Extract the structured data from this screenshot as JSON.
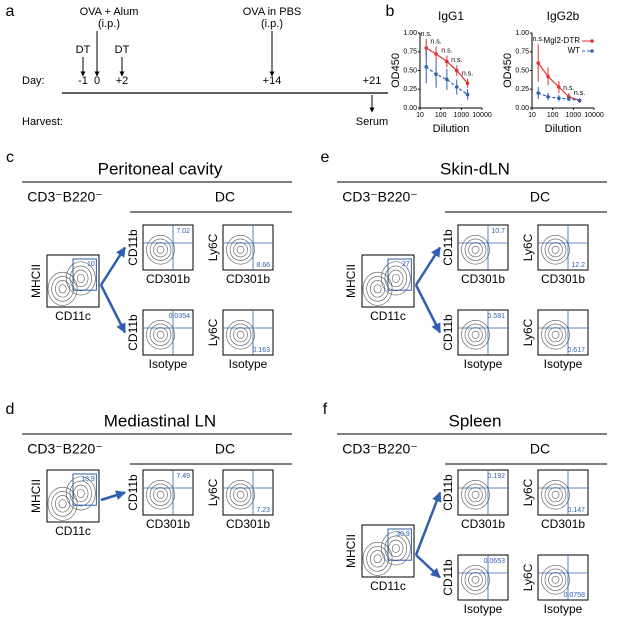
{
  "panel_labels": [
    "a",
    "b"
  ],
  "timeline": {
    "day_label": "Day:",
    "harvest_label": "Harvest:",
    "days": [
      "-1",
      "0",
      "+2",
      "+14",
      "+21"
    ],
    "events": [
      {
        "label": "DT"
      },
      {
        "label": "OVA + Alum",
        "sublabel": "(i.p.)"
      },
      {
        "label": "DT"
      },
      {
        "label": "OVA in PBS",
        "sublabel": "(i.p.)"
      }
    ],
    "harvest": "Serum"
  },
  "elisa": [
    {
      "type": "line",
      "title": "IgG1",
      "ylabel": "OD450",
      "xlabel": "Dilution",
      "log_x": true,
      "x": [
        20,
        60,
        200,
        600,
        2000
      ],
      "xlim": [
        10,
        10000
      ],
      "xticks": [
        10,
        100,
        1000,
        10000
      ],
      "ylim": [
        0,
        1
      ],
      "yticks": [
        {
          "value": 0,
          "label": "0.00"
        },
        {
          "value": 0.25,
          "label": "0.25"
        },
        {
          "value": 0.5,
          "label": "0.50"
        },
        {
          "value": 0.75,
          "label": "0.75"
        },
        {
          "value": 1,
          "label": "1.00"
        }
      ],
      "series": [
        {
          "name": "Mgl2-DTR",
          "color": "#e03030",
          "values": [
            0.8,
            0.72,
            0.62,
            0.5,
            0.33
          ],
          "errors": [
            0.12,
            0.1,
            0.08,
            0.07,
            0.06
          ]
        },
        {
          "name": "WT",
          "color": "#3060b0",
          "values": [
            0.55,
            0.45,
            0.38,
            0.28,
            0.18
          ],
          "errors": [
            0.22,
            0.18,
            0.14,
            0.1,
            0.07
          ]
        }
      ],
      "annotations": [
        "n.s.",
        "n.s.",
        "n.s.",
        "n.s.",
        "n.s."
      ]
    },
    {
      "type": "line",
      "title": "IgG2b",
      "ylabel": "OD450",
      "xlabel": "Dilution",
      "log_x": true,
      "x": [
        20,
        60,
        200,
        600,
        2000
      ],
      "xlim": [
        10,
        10000
      ],
      "xticks": [
        10,
        100,
        1000,
        10000
      ],
      "ylim": [
        0,
        1
      ],
      "yticks": [
        {
          "value": 0,
          "label": "0.00"
        },
        {
          "value": 0.25,
          "label": "0.25"
        },
        {
          "value": 0.5,
          "label": "0.50"
        },
        {
          "value": 0.75,
          "label": "0.75"
        },
        {
          "value": 1,
          "label": "1.00"
        }
      ],
      "series": [
        {
          "name": "Mgl2-DTR",
          "color": "#e03030",
          "values": [
            0.6,
            0.42,
            0.28,
            0.15,
            0.1
          ],
          "errors": [
            0.25,
            0.12,
            0.08,
            0.05,
            0.03
          ]
        },
        {
          "name": "WT",
          "color": "#3060b0",
          "values": [
            0.2,
            0.15,
            0.13,
            0.12,
            0.1
          ],
          "errors": [
            0.08,
            0.05,
            0.04,
            0.03,
            0.03
          ]
        }
      ],
      "annotations": [
        "n.s.",
        null,
        null,
        "n.s.",
        "n.s."
      ],
      "legend": "upper right"
    }
  ],
  "panels": [
    {
      "label": "c",
      "title": "Peritoneal cavity",
      "population": "CD3⁻B220⁻",
      "dc_label": "DC",
      "gate": {
        "x_label": "CD11c",
        "y_label": "MHCII",
        "value": 10
      },
      "plots": [
        {
          "y_label": "CD11b",
          "x_label": "CD301b",
          "value": 7.02
        },
        {
          "y_label": "Ly6C",
          "x_label": "CD301b",
          "value": 8.66
        },
        {
          "y_label": "CD11b",
          "x_label": "Isotype",
          "value": 0.0354
        },
        {
          "y_label": "Ly6C",
          "x_label": "Isotype",
          "value": 0.163
        }
      ]
    },
    {
      "label": "d",
      "title": "Mediastinal LN",
      "population": "CD3⁻B220⁻",
      "dc_label": "DC",
      "gate": {
        "x_label": "CD11c",
        "y_label": "MHCII",
        "value": 18.9
      },
      "plots": [
        {
          "y_label": "CD11b",
          "x_label": "CD301b",
          "value": 7.49
        },
        {
          "y_label": "Ly6C",
          "x_label": "CD301b",
          "value": 7.23
        }
      ]
    },
    {
      "label": "e",
      "title": "Skin-dLN",
      "population": "CD3⁻B220⁻",
      "dc_label": "DC",
      "gate": {
        "x_label": "CD11c",
        "y_label": "MHCII",
        "value": 27
      },
      "plots": [
        {
          "y_label": "CD11b",
          "x_label": "CD301b",
          "value": 10.7
        },
        {
          "y_label": "Ly6C",
          "x_label": "CD301b",
          "value": 12.2
        },
        {
          "y_label": "CD11b",
          "x_label": "Isotype",
          "value": 0.581
        },
        {
          "y_label": "Ly6C",
          "x_label": "Isotype",
          "value": 0.617
        }
      ]
    },
    {
      "label": "f",
      "title": "Spleen",
      "population": "CD3⁻B220⁻",
      "dc_label": "DC",
      "gate": {
        "x_label": "CD11c",
        "y_label": "MHCII",
        "value": 30.9
      },
      "plots": [
        {
          "y_label": "CD11b",
          "x_label": "CD301b",
          "value": 0.192
        },
        {
          "y_label": "Ly6C",
          "x_label": "CD301b",
          "value": 0.147
        },
        {
          "y_label": "CD11b",
          "x_label": "Isotype",
          "value": 0.0653
        },
        {
          "y_label": "Ly6C",
          "x_label": "Isotype",
          "value": 0.0758
        }
      ]
    }
  ]
}
